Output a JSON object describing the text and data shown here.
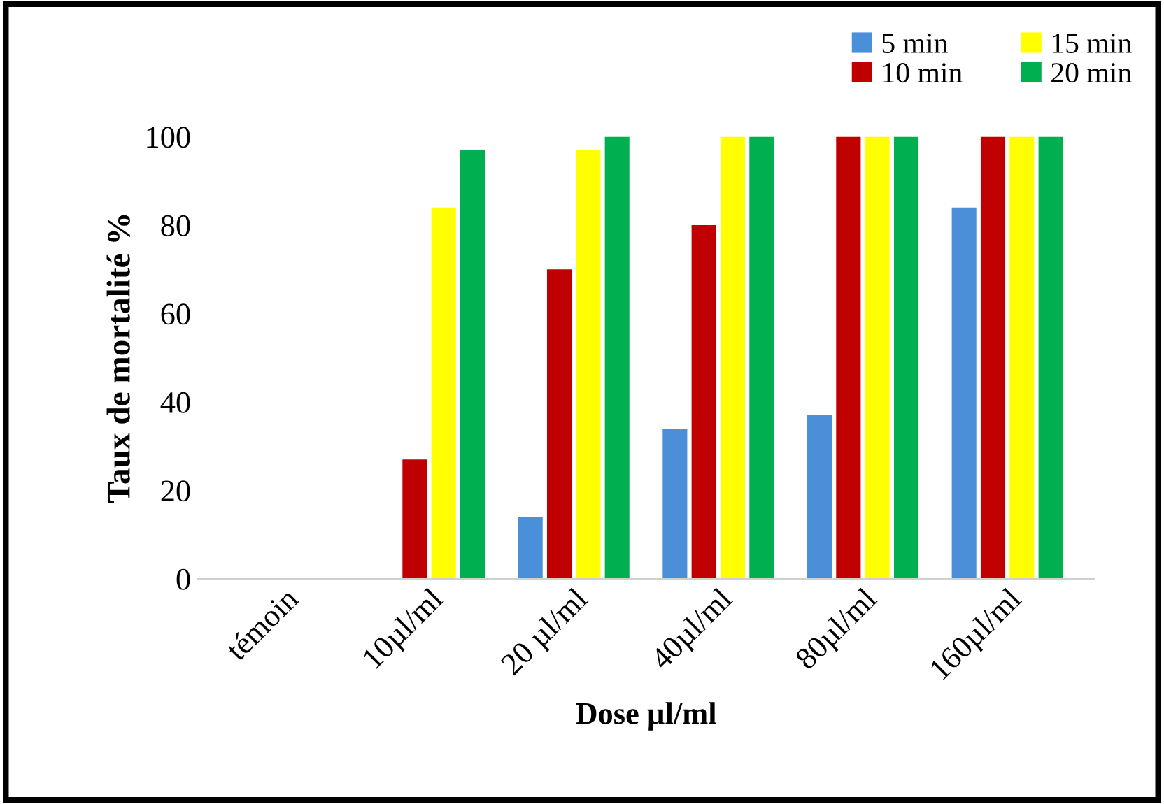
{
  "chart_data": {
    "type": "bar",
    "xlabel": "Dose µl/ml",
    "ylabel": "Taux de mortalité %",
    "categories": [
      "témoin",
      "10µl/ml",
      "20 µl/ml",
      "40µl/ml",
      "80µl/ml",
      "160µl/ml"
    ],
    "series": [
      {
        "name": "5 min",
        "color": "#4a8fd8",
        "values": [
          0,
          0,
          14,
          34,
          37,
          84
        ]
      },
      {
        "name": "10 min",
        "color": "#c00000",
        "values": [
          0,
          27,
          70,
          80,
          100,
          100
        ]
      },
      {
        "name": "15 min",
        "color": "#ffff00",
        "values": [
          0,
          84,
          97,
          100,
          100,
          100
        ]
      },
      {
        "name": "20 min",
        "color": "#00b050",
        "values": [
          0,
          97,
          100,
          100,
          100,
          100
        ]
      }
    ],
    "ylim": [
      0,
      100
    ],
    "yticks": [
      0,
      20,
      40,
      60,
      80,
      100
    ],
    "grid": false,
    "legend": "top right"
  }
}
